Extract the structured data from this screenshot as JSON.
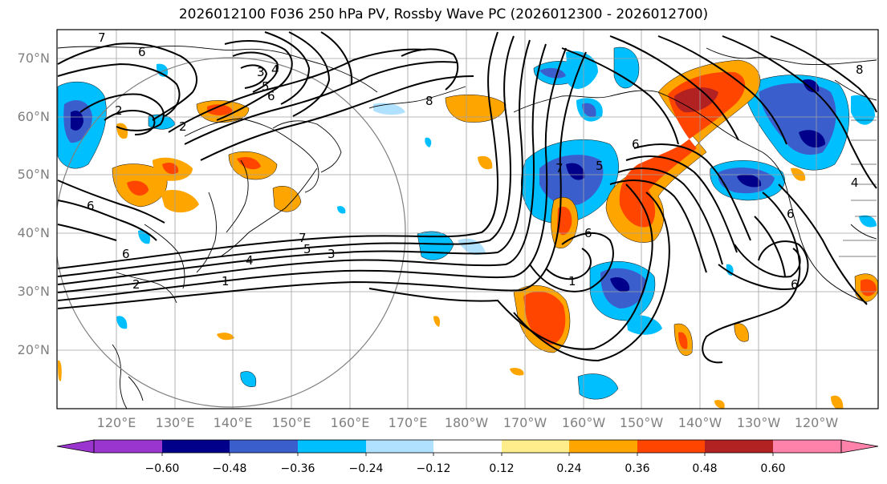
{
  "title": "2026012100 F036 250 hPa PV, Rossby Wave PC (2026012300 - 2026012700)",
  "lat_labels": [
    "70°N",
    "60°N",
    "50°N",
    "40°N",
    "30°N",
    "20°N"
  ],
  "lon_labels": [
    "120°E",
    "130°E",
    "140°E",
    "150°E",
    "160°E",
    "170°E",
    "180°W",
    "170°W",
    "160°W",
    "150°W",
    "140°W",
    "130°W",
    "120°W"
  ],
  "colorbar": {
    "ticks": [
      "−0.60",
      "−0.48",
      "−0.36",
      "−0.24",
      "−0.12",
      "0.12",
      "0.24",
      "0.36",
      "0.48",
      "0.60"
    ],
    "colors": [
      "#9a35d0",
      "#00008b",
      "#3a5fcd",
      "#00bfff",
      "#b0e2ff",
      "#ffffff",
      "#ffec8b",
      "#ffa500",
      "#ff4500",
      "#b22222",
      "#ff82ab"
    ]
  },
  "contour_labels": [
    "7",
    "6",
    "2",
    "3",
    "4",
    "5",
    "6",
    "2",
    "6",
    "7",
    "5",
    "3",
    "4",
    "1",
    "2",
    "6",
    "1",
    "6",
    "5",
    "7",
    "6",
    "8",
    "6",
    "4",
    "6",
    "8"
  ],
  "anomaly_colors": {
    "neg_light": "#b0e2ff",
    "neg_mid": "#00bfff",
    "neg_strong": "#3a5fcd",
    "neg_max": "#00008b",
    "pos_light": "#ffec8b",
    "pos_mid": "#ffa500",
    "pos_strong": "#ff4500",
    "pos_max": "#b22222"
  }
}
